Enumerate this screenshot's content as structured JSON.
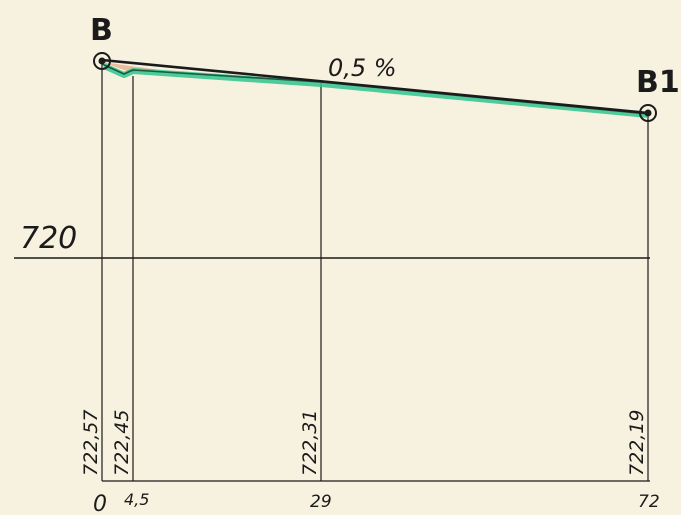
{
  "points": {
    "start_label": "B",
    "end_label": "B1"
  },
  "grade_label": "0,5 %",
  "datum": {
    "elevation_label": "720"
  },
  "stations": [
    {
      "distance": "0",
      "elevation": "722,57"
    },
    {
      "distance": "4,5",
      "elevation": "722,45"
    },
    {
      "distance": "29",
      "elevation": "722,31"
    },
    {
      "distance": "72",
      "elevation": "722,19"
    }
  ],
  "colors": {
    "paper": "#f7f1df",
    "ink": "#1b1b1b",
    "profile_highlight": "#2fc48e",
    "cut_fill": "#e9b08a"
  },
  "icons": {
    "benchmark": "double-circle"
  }
}
